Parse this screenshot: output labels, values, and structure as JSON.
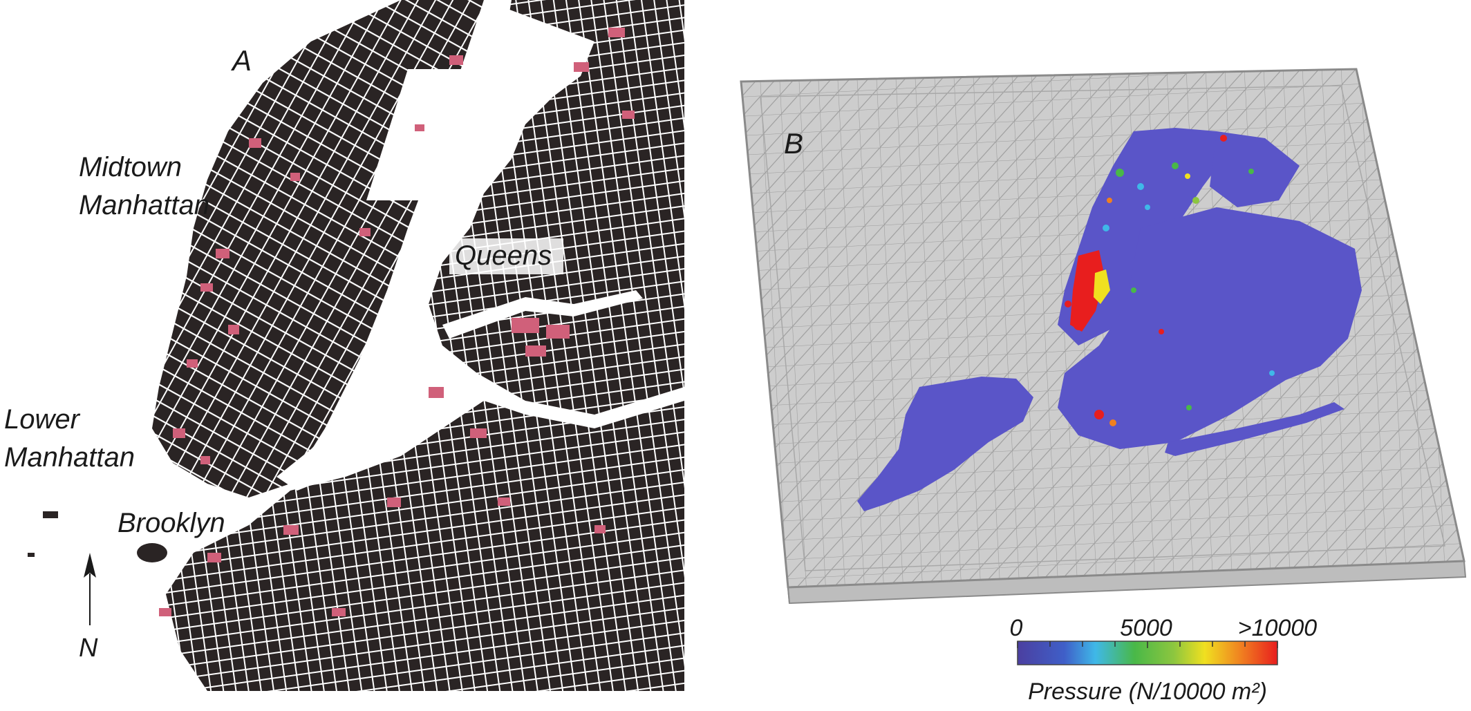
{
  "panel_a": {
    "letter": "A",
    "labels": {
      "midtown_line1": "Midtown",
      "midtown_line2": "Manhattan",
      "queens": "Queens",
      "lower_line1": "Lower",
      "lower_line2": "Manhattan",
      "brooklyn": "Brooklyn",
      "north": "N"
    },
    "colors": {
      "buildings": "#2a2424",
      "highlight": "#d0607a",
      "streets": "#ffffff",
      "water": "#ffffff"
    }
  },
  "panel_b": {
    "letter": "B",
    "colorbar": {
      "tick_min": "0",
      "tick_mid": "5000",
      "tick_max": ">10000",
      "title": "Pressure (N/10000 m²)",
      "colors": [
        "#4b3fa0",
        "#3f5fc8",
        "#3fb8e8",
        "#49b848",
        "#8cc63f",
        "#f0e020",
        "#f08020",
        "#e81e1e"
      ]
    },
    "colors": {
      "mesh": "#9a9a9a",
      "mesh_fill": "#c8c8c8",
      "low_pressure": "#5a55c8",
      "high_pressure": "#e81e1e"
    }
  }
}
